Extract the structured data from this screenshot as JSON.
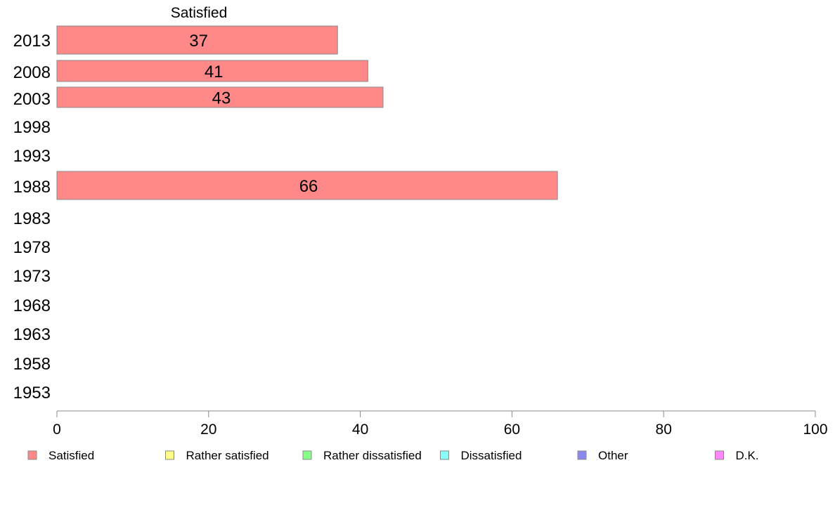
{
  "chart_data": {
    "type": "bar",
    "orientation": "horizontal",
    "header": "Satisfied",
    "categories": [
      "2013",
      "2008",
      "2003",
      "1998",
      "1993",
      "1988",
      "1983",
      "1978",
      "1973",
      "1968",
      "1963",
      "1958",
      "1953"
    ],
    "series": [
      {
        "name": "Satisfied",
        "values": [
          37,
          41,
          43,
          null,
          null,
          66,
          null,
          null,
          null,
          null,
          null,
          null,
          null
        ]
      }
    ],
    "xlim": [
      0,
      100
    ],
    "xticks": [
      0,
      20,
      40,
      60,
      80,
      100
    ],
    "grid": false,
    "legend_position": "bottom",
    "legend": [
      {
        "label": "Satisfied",
        "color": "#ff8888"
      },
      {
        "label": "Rather satisfied",
        "color": "#ffff88"
      },
      {
        "label": "Rather dissatisfied",
        "color": "#88ff88"
      },
      {
        "label": "Dissatisfied",
        "color": "#88ffff"
      },
      {
        "label": "Other",
        "color": "#8888ee"
      },
      {
        "label": "D.K.",
        "color": "#ff88ff"
      }
    ],
    "bar_color": "#ff8888",
    "bar_edge_color": "#888888"
  }
}
